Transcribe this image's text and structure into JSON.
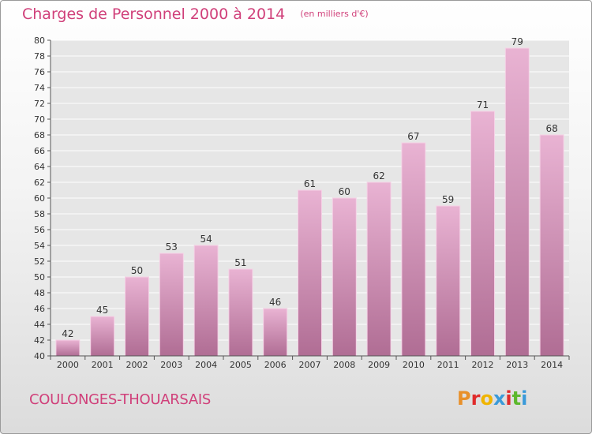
{
  "header": {
    "title": "Charges de Personnel 2000 à 2014",
    "subtitle": "(en milliers d'€)"
  },
  "footer": {
    "commune": "COULONGES-THOUARSAIS",
    "brand": "Proxiti",
    "brand_colors": [
      "#e8902a",
      "#e02b2b",
      "#f0b400",
      "#3a9ad9",
      "#e02b2b",
      "#5cb82c",
      "#3a9ad9"
    ]
  },
  "colors": {
    "title": "#d0407a",
    "bar_top": "#e9b3d3",
    "bar_bottom": "#b06d94",
    "bar_edge": "#f5d2e6",
    "axis": "#555555",
    "gridline": "#ffffff"
  },
  "chart_data": {
    "type": "bar",
    "title": "Charges de Personnel 2000 à 2014",
    "subtitle": "(en milliers d'€)",
    "categories": [
      "2000",
      "2001",
      "2002",
      "2003",
      "2004",
      "2005",
      "2006",
      "2007",
      "2008",
      "2009",
      "2010",
      "2011",
      "2012",
      "2013",
      "2014"
    ],
    "values": [
      42,
      45,
      50,
      53,
      54,
      51,
      46,
      61,
      60,
      62,
      67,
      59,
      71,
      79,
      68
    ],
    "ylim": [
      40,
      80
    ],
    "ytick_step": 2,
    "grid": true,
    "legend": "none"
  }
}
